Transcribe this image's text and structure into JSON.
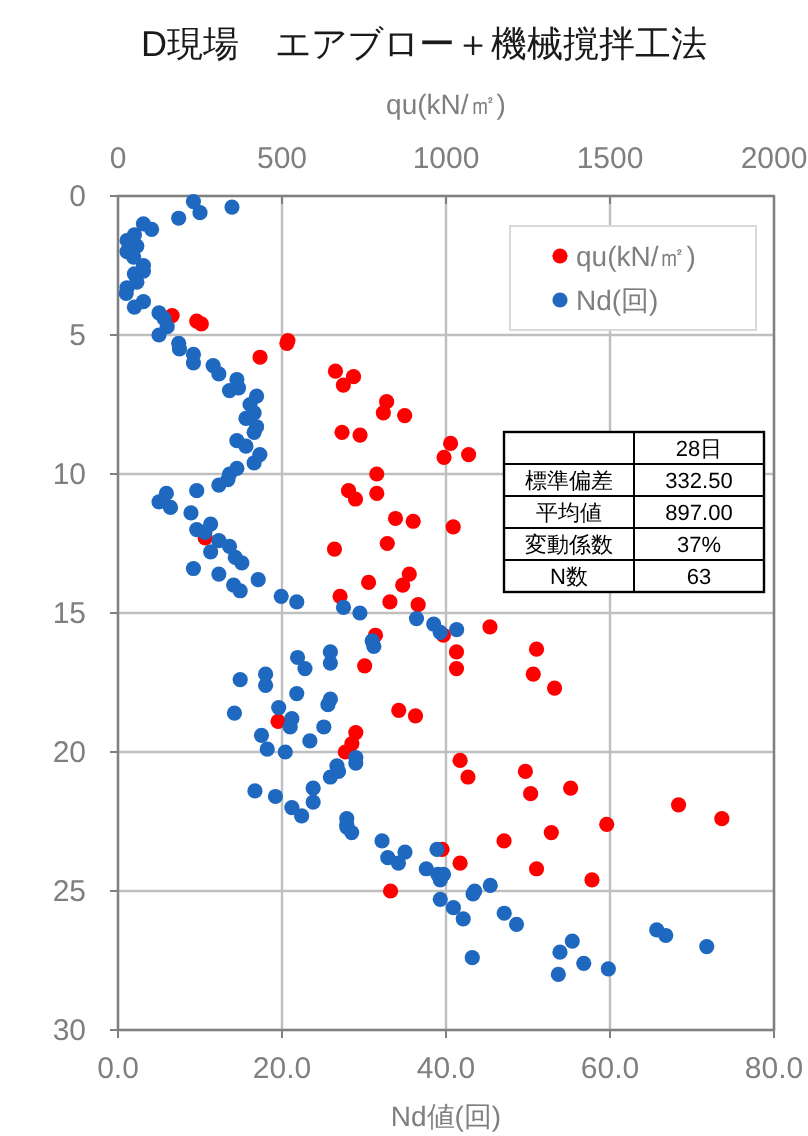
{
  "chart_data": {
    "type": "scatter",
    "title": "D現場　エアブロー＋機械撹拌工法",
    "xlabel": "Nd値(回)",
    "x2label": "qu(kN/㎡)",
    "xlim": [
      0,
      80
    ],
    "xticks": [
      {
        "value": 0,
        "label": "0.0"
      },
      {
        "value": 20,
        "label": "20.0"
      },
      {
        "value": 40,
        "label": "40.0"
      },
      {
        "value": 60,
        "label": "60.0"
      },
      {
        "value": 80,
        "label": "80.0"
      }
    ],
    "x2lim": [
      0,
      2000
    ],
    "x2ticks": [
      0,
      500,
      1000,
      1500,
      2000
    ],
    "ylim": [
      30,
      0
    ],
    "yticks": [
      0,
      5,
      10,
      15,
      20,
      25,
      30
    ],
    "grid": true,
    "legend": "top right",
    "marker": "circle",
    "annotations": [
      "28日",
      "標準偏差",
      "332.50",
      "平均値",
      "897.00",
      "変動係数",
      "37%",
      "N数",
      "63"
    ],
    "series": [
      {
        "name": "qu(kN/㎡)",
        "color": "#ff0000",
        "axis": "x2",
        "x": [
          165,
          240,
          254,
          518,
          515,
          433,
          663,
          718,
          687,
          819,
          809,
          874,
          683,
          738,
          1014,
          1069,
          994,
          789,
          703,
          789,
          724,
          846,
          900,
          1022,
          266,
          660,
          821,
          888,
          764,
          868,
          829,
          677,
          915,
          785,
          992,
          1134,
          1032,
          1032,
          752,
          856,
          907,
          488,
          725,
          713,
          693,
          1043,
          1067,
          988,
          1043,
          831,
          1276,
          1266,
          1331,
          1242,
          1258,
          1380,
          1709,
          1841,
          1490,
          1321,
          1177,
          1276,
          1445
        ],
        "values": [
          4.3,
          4.5,
          4.6,
          5.2,
          5.3,
          5.8,
          6.3,
          6.5,
          6.8,
          7.4,
          7.8,
          7.9,
          8.5,
          8.6,
          8.9,
          9.3,
          9.4,
          10.0,
          10.6,
          10.7,
          10.9,
          11.6,
          11.7,
          11.9,
          12.3,
          12.7,
          12.5,
          13.6,
          13.9,
          14.0,
          14.6,
          14.4,
          14.7,
          15.8,
          15.8,
          15.5,
          16.4,
          17.0,
          16.9,
          18.5,
          18.7,
          18.9,
          19.3,
          19.7,
          20.0,
          20.3,
          20.9,
          23.5,
          24.0,
          25.0,
          16.3,
          17.2,
          17.7,
          20.7,
          21.5,
          21.3,
          21.9,
          22.4,
          22.6,
          22.9,
          23.2,
          24.2,
          24.6
        ]
      },
      {
        "name": "Nd(回)",
        "color": "#1f68c0",
        "x": [
          9.2,
          13.9,
          10.0,
          7.4,
          3.1,
          4.1,
          2.0,
          1.1,
          2.3,
          1.1,
          1.9,
          3.1,
          3.1,
          2.0,
          2.3,
          1.1,
          1.0,
          3.1,
          2.0,
          5.0,
          5.6,
          6.0,
          5.0,
          7.4,
          7.5,
          9.2,
          9.2,
          11.6,
          12.3,
          14.5,
          14.7,
          13.6,
          16.9,
          16.1,
          16.6,
          15.6,
          16.9,
          16.6,
          14.5,
          15.6,
          17.3,
          16.6,
          14.5,
          13.6,
          13.4,
          12.3,
          9.6,
          5.9,
          5.0,
          6.4,
          8.9,
          11.3,
          9.6,
          10.6,
          12.3,
          13.6,
          11.3,
          14.3,
          15.1,
          9.2,
          12.3,
          17.1,
          14.1,
          14.9,
          19.9,
          21.8,
          27.5,
          29.5,
          36.4,
          38.5,
          39.3,
          41.3,
          31.0,
          31.2,
          21.9,
          25.9,
          25.9,
          22.8,
          14.9,
          18.0,
          18.0,
          21.8,
          25.9,
          25.6,
          19.6,
          14.2,
          21.2,
          25.1,
          21.0,
          23.4,
          17.5,
          18.2,
          20.4,
          26.7,
          26.9,
          25.9,
          29.0,
          29.0,
          23.8,
          23.8,
          16.7,
          19.2,
          21.2,
          22.4,
          27.9,
          27.9,
          27.9,
          28.5,
          32.2,
          32.9,
          34.2,
          35.0,
          37.6,
          39.0,
          38.9,
          39.3,
          40.9,
          42.1,
          43.3,
          43.2,
          39.7,
          39.3,
          43.5,
          45.4,
          47.1,
          48.6,
          53.9,
          55.4,
          56.8,
          53.7,
          59.8,
          65.7,
          66.8,
          71.8
        ],
        "values": [
          0.2,
          0.4,
          0.6,
          0.8,
          1.0,
          1.2,
          1.4,
          1.6,
          1.8,
          2.0,
          2.2,
          2.5,
          2.7,
          2.8,
          3.1,
          3.3,
          3.5,
          3.8,
          4.0,
          4.2,
          4.4,
          4.7,
          5.0,
          5.3,
          5.5,
          5.7,
          6.0,
          6.1,
          6.4,
          6.6,
          6.9,
          7.0,
          7.2,
          7.5,
          7.8,
          8.0,
          8.3,
          8.5,
          8.8,
          9.0,
          9.3,
          9.6,
          9.8,
          10.0,
          10.2,
          10.4,
          10.6,
          10.7,
          11.0,
          11.2,
          11.4,
          11.8,
          12.0,
          12.1,
          12.4,
          12.6,
          12.8,
          13.0,
          13.2,
          13.4,
          13.6,
          13.8,
          14.0,
          14.2,
          14.4,
          14.6,
          14.8,
          15.0,
          15.2,
          15.4,
          15.7,
          15.6,
          16.0,
          16.2,
          16.6,
          16.4,
          16.8,
          17.0,
          17.4,
          17.2,
          17.6,
          17.9,
          18.1,
          18.3,
          18.4,
          18.6,
          18.8,
          19.1,
          19.1,
          19.6,
          19.4,
          19.9,
          20.0,
          20.5,
          20.7,
          20.9,
          20.2,
          20.4,
          21.3,
          21.8,
          21.4,
          21.6,
          22.0,
          22.3,
          22.4,
          22.6,
          22.7,
          22.9,
          23.2,
          23.8,
          24.0,
          23.6,
          24.2,
          24.4,
          23.5,
          25.3,
          25.6,
          26.0,
          25.1,
          27.4,
          24.4,
          24.6,
          25.0,
          24.8,
          25.8,
          26.2,
          27.2,
          26.8,
          27.6,
          28.0,
          27.8,
          26.4,
          26.6,
          27.0
        ]
      }
    ]
  }
}
